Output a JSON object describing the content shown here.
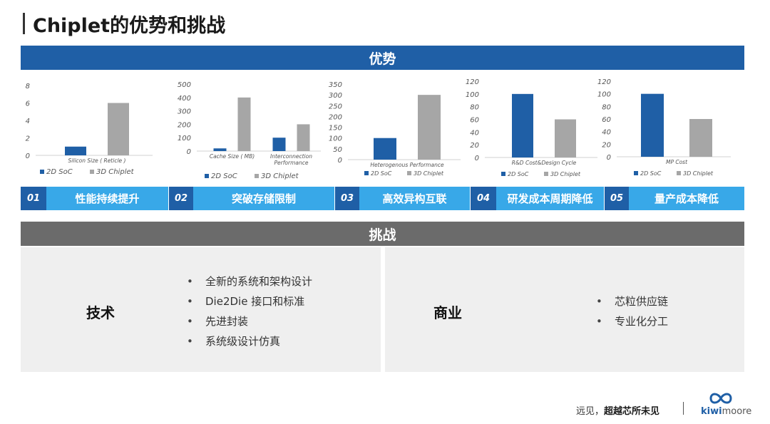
{
  "header": {
    "title": "Chiplet的优势和挑战"
  },
  "advantages": {
    "heading": "优势",
    "tabs": [
      {
        "num": "01",
        "label": "性能持续提升"
      },
      {
        "num": "02",
        "label": "突破存储限制"
      },
      {
        "num": "03",
        "label": "高效异构互联"
      },
      {
        "num": "04",
        "label": "研发成本周期降低"
      },
      {
        "num": "05",
        "label": "量产成本降低"
      }
    ]
  },
  "colors": {
    "soc": "#1f5fa6",
    "chiplet": "#a6a6a6",
    "advantage_header": "#1f5fa6",
    "tab_label": "#38a8e8",
    "challenge_header": "#6b6b6b"
  },
  "chart_data": [
    {
      "type": "bar",
      "categories": [
        "Silicon Size ( Reticle )"
      ],
      "series": [
        {
          "name": "2D SoC",
          "values": [
            1
          ]
        },
        {
          "name": "3D Chiplet",
          "values": [
            6
          ]
        }
      ],
      "ylim": [
        0,
        8
      ],
      "yticks": [
        0,
        2,
        4,
        6,
        8
      ],
      "legend": "bottom"
    },
    {
      "type": "bar",
      "categories": [
        "Cache Size ( MB)",
        "Interconnection Performance"
      ],
      "series": [
        {
          "name": "2D SoC",
          "values": [
            20,
            100
          ]
        },
        {
          "name": "3D Chiplet",
          "values": [
            400,
            200
          ]
        }
      ],
      "ylim": [
        0,
        500
      ],
      "yticks": [
        0,
        100,
        200,
        300,
        400,
        500
      ],
      "legend": "bottom"
    },
    {
      "type": "bar",
      "categories": [
        "Heterogenous Performance"
      ],
      "series": [
        {
          "name": "2D SoC",
          "values": [
            100
          ]
        },
        {
          "name": "3D Chiplet",
          "values": [
            300
          ]
        }
      ],
      "ylim": [
        0,
        350
      ],
      "yticks": [
        0,
        50,
        100,
        150,
        200,
        250,
        300,
        350
      ],
      "legend": "bottom"
    },
    {
      "type": "bar",
      "categories": [
        "R&D Cost&Design Cycle"
      ],
      "series": [
        {
          "name": "2D SoC",
          "values": [
            100
          ]
        },
        {
          "name": "3D Chiplet",
          "values": [
            60
          ]
        }
      ],
      "ylim": [
        0,
        120
      ],
      "yticks": [
        0,
        20,
        40,
        60,
        80,
        100,
        120
      ],
      "legend": "bottom"
    },
    {
      "type": "bar",
      "categories": [
        "MP Cost"
      ],
      "series": [
        {
          "name": "2D SoC",
          "values": [
            100
          ]
        },
        {
          "name": "3D Chiplet",
          "values": [
            60
          ]
        }
      ],
      "ylim": [
        0,
        120
      ],
      "yticks": [
        0,
        20,
        40,
        60,
        80,
        100,
        120
      ],
      "legend": "bottom"
    }
  ],
  "challenges": {
    "heading": "挑战",
    "technical": {
      "title": "技术",
      "items": [
        "全新的系统和架构设计",
        "Die2Die 接口和标准",
        "先进封装",
        "系统级设计仿真"
      ]
    },
    "business": {
      "title": "商业",
      "items": [
        "芯粒供应链",
        "专业化分工"
      ]
    },
    "bullet": "•"
  },
  "footer": {
    "slogan_prefix": "远见，",
    "slogan_bold": "超越芯所未见",
    "logo_kiwi": "kiwi",
    "logo_moore": "moore"
  }
}
